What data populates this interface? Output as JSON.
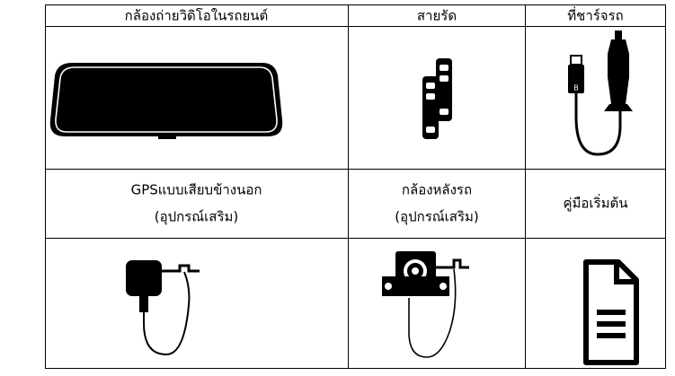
{
  "table": {
    "header": [
      "กล้องถ่ายวิดิโอในรถยนต์",
      "สายรัด",
      "ที่ชาร์จรถ"
    ],
    "rows": [
      [
        [
          "GPSแบบเสียบข้างนอก",
          "(อุปกรณ์เสริม)"
        ],
        [
          "กล้องหลังรถ",
          "(อุปกรณ์เสริม)"
        ],
        [
          "คู่มือเริ่มต้น"
        ]
      ]
    ]
  }
}
